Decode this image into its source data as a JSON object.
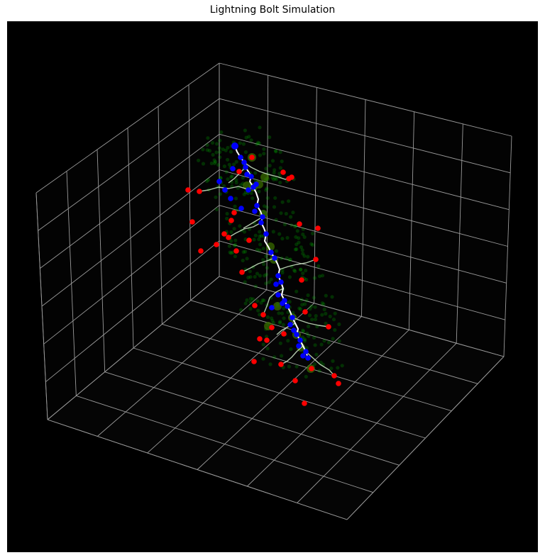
{
  "chart_data": {
    "type": "scatter",
    "projection": "3d",
    "title": "Lightning Bolt Simulation",
    "grid": true,
    "tick_labels": "none",
    "colors": {
      "background": "#000000",
      "grid": "#9a9a9a",
      "bolt": "#ffffff",
      "main_nodes": "#0000ff",
      "branch_tips": "#ff0000",
      "charge_cloud": "#00cc00"
    },
    "series": [
      {
        "kind": "bolt_path",
        "points": [
          [
            331,
            206
          ],
          [
            334,
            214
          ],
          [
            339,
            222
          ],
          [
            344,
            229
          ],
          [
            346,
            236
          ],
          [
            350,
            242
          ],
          [
            354,
            249
          ],
          [
            352,
            256
          ],
          [
            357,
            264
          ],
          [
            361,
            272
          ],
          [
            364,
            281
          ],
          [
            362,
            290
          ],
          [
            367,
            298
          ],
          [
            370,
            306
          ],
          [
            368,
            314
          ],
          [
            372,
            322
          ],
          [
            375,
            330
          ],
          [
            373,
            340
          ],
          [
            378,
            348
          ],
          [
            382,
            356
          ],
          [
            387,
            364
          ],
          [
            391,
            372
          ],
          [
            394,
            380
          ],
          [
            392,
            389
          ],
          [
            396,
            398
          ],
          [
            399,
            407
          ],
          [
            397,
            416
          ],
          [
            401,
            424
          ],
          [
            405,
            432
          ],
          [
            409,
            440
          ],
          [
            412,
            448
          ],
          [
            416,
            456
          ],
          [
            420,
            464
          ],
          [
            418,
            472
          ],
          [
            423,
            480
          ],
          [
            427,
            488
          ],
          [
            431,
            496
          ],
          [
            434,
            505
          ]
        ]
      },
      {
        "kind": "branches",
        "paths": [
          [
            [
              344,
              229
            ],
            [
              354,
              236
            ],
            [
              366,
              242
            ],
            [
              378,
              246
            ],
            [
              390,
              249
            ],
            [
              402,
              253
            ],
            [
              411,
              250
            ]
          ],
          [
            [
              357,
              264
            ],
            [
              349,
              267
            ],
            [
              336,
              263
            ],
            [
              322,
              266
            ],
            [
              308,
              264
            ],
            [
              294,
              268
            ],
            [
              281,
              270
            ]
          ],
          [
            [
              368,
              314
            ],
            [
              357,
              320
            ],
            [
              344,
              323
            ],
            [
              332,
              329
            ],
            [
              322,
              335
            ]
          ],
          [
            [
              387,
              364
            ],
            [
              376,
              368
            ],
            [
              364,
              372
            ],
            [
              353,
              378
            ],
            [
              341,
              384
            ]
          ],
          [
            [
              394,
              380
            ],
            [
              406,
              376
            ],
            [
              418,
              373
            ],
            [
              431,
              371
            ],
            [
              445,
              366
            ]
          ],
          [
            [
              399,
              407
            ],
            [
              389,
              412
            ],
            [
              380,
              420
            ],
            [
              376,
              432
            ],
            [
              371,
              444
            ]
          ],
          [
            [
              412,
              448
            ],
            [
              423,
              452
            ],
            [
              435,
              456
            ],
            [
              449,
              459
            ],
            [
              463,
              461
            ]
          ],
          [
            [
              427,
              488
            ],
            [
              418,
              496
            ],
            [
              411,
              504
            ],
            [
              404,
              510
            ],
            [
              396,
              514
            ]
          ],
          [
            [
              431,
              496
            ],
            [
              441,
              505
            ],
            [
              451,
              514
            ],
            [
              464,
              522
            ],
            [
              471,
              530
            ]
          ],
          [
            [
              346,
              236
            ],
            [
              338,
              244
            ],
            [
              330,
              252
            ],
            [
              322,
              258
            ]
          ],
          [
            [
              370,
              306
            ],
            [
              360,
              312
            ],
            [
              350,
              318
            ],
            [
              343,
              322
            ]
          ],
          [
            [
              416,
              456
            ],
            [
              406,
              461
            ],
            [
              397,
              466
            ],
            [
              390,
              472
            ]
          ]
        ]
      },
      {
        "kind": "main_nodes",
        "points": [
          [
            331,
            206
          ],
          [
            339,
            222
          ],
          [
            346,
            236
          ],
          [
            354,
            249
          ],
          [
            362,
            290
          ],
          [
            368,
            314
          ],
          [
            375,
            330
          ],
          [
            387,
            364
          ],
          [
            396,
            398
          ],
          [
            405,
            432
          ],
          [
            412,
            448
          ],
          [
            423,
            480
          ],
          [
            431,
            496
          ],
          [
            434,
            505
          ],
          [
            344,
            229
          ],
          [
            357,
            264
          ],
          [
            370,
            306
          ],
          [
            401,
            424
          ],
          [
            382,
            356
          ],
          [
            392,
            389
          ],
          [
            418,
            472
          ],
          [
            309,
            256
          ],
          [
            325,
            280
          ],
          [
            340,
            294
          ],
          [
            348,
            246
          ],
          [
            328,
            238
          ],
          [
            350,
            268
          ],
          [
            361,
            260
          ],
          [
            317,
            268
          ],
          [
            359,
            298
          ],
          [
            389,
            401
          ],
          [
            398,
            428
          ],
          [
            383,
            434
          ],
          [
            392,
            416
          ],
          [
            414,
            466
          ],
          [
            427,
            502
          ],
          [
            421,
            488
          ],
          [
            409,
            458
          ]
        ]
      },
      {
        "kind": "branch_tips",
        "points": [
          [
            355,
            222
          ],
          [
            411,
            250
          ],
          [
            399,
            243
          ],
          [
            281,
            270
          ],
          [
            265,
            268
          ],
          [
            322,
            335
          ],
          [
            305,
            345
          ],
          [
            341,
            384
          ],
          [
            283,
            354
          ],
          [
            445,
            366
          ],
          [
            448,
            322
          ],
          [
            422,
            316
          ],
          [
            371,
            444
          ],
          [
            359,
            431
          ],
          [
            463,
            461
          ],
          [
            430,
            440
          ],
          [
            396,
            514
          ],
          [
            358,
            510
          ],
          [
            471,
            530
          ],
          [
            477,
            541
          ],
          [
            439,
            520
          ],
          [
            429,
            569
          ],
          [
            416,
            537
          ],
          [
            333,
            354
          ],
          [
            351,
            339
          ],
          [
            330,
            300
          ],
          [
            271,
            313
          ],
          [
            407,
            252
          ],
          [
            337,
            242
          ],
          [
            383,
            462
          ],
          [
            400,
            471
          ],
          [
            376,
            480
          ],
          [
            366,
            478
          ],
          [
            425,
            395
          ],
          [
            316,
            330
          ],
          [
            326,
            311
          ]
        ]
      },
      {
        "kind": "charge_cloud_large",
        "points": [
          [
            355,
            222
          ],
          [
            348,
            262
          ],
          [
            357,
            264
          ],
          [
            365,
            260
          ],
          [
            373,
            250
          ],
          [
            371,
            302
          ],
          [
            381,
            348
          ],
          [
            386,
            366
          ],
          [
            412,
            448
          ],
          [
            391,
            432
          ],
          [
            418,
            472
          ],
          [
            424,
            490
          ],
          [
            438,
            520
          ],
          [
            378,
            460
          ]
        ]
      }
    ]
  }
}
